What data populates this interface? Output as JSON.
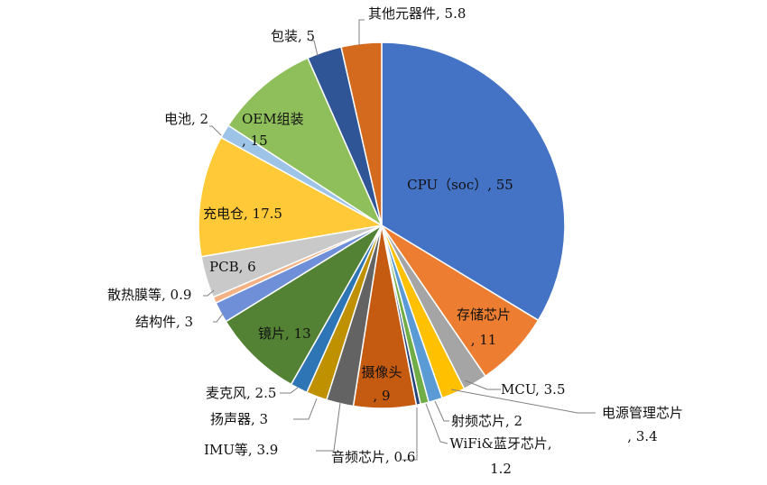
{
  "chart_data": {
    "type": "pie",
    "title": "",
    "slices": [
      {
        "name": "CPU（soc）",
        "value": 55,
        "label": "CPU（soc）, 55",
        "color": "#4472c4"
      },
      {
        "name": "存储芯片",
        "value": 11,
        "label": "存储芯片, 11",
        "color": "#ed7d31"
      },
      {
        "name": "MCU",
        "value": 3.5,
        "label": "MCU, 3.5",
        "color": "#a5a5a5"
      },
      {
        "name": "电源管理芯片",
        "value": 3.4,
        "label": "电源管理芯片, 3.4",
        "color": "#ffc000"
      },
      {
        "name": "射频芯片",
        "value": 2,
        "label": "射频芯片, 2",
        "color": "#5b9bd5"
      },
      {
        "name": "WiFi&蓝牙芯片",
        "value": 1.2,
        "label": "WiFi&蓝牙芯片, 1.2",
        "color": "#70ad47"
      },
      {
        "name": "音频芯片",
        "value": 0.6,
        "label": "音频芯片, 0.6",
        "color": "#264478"
      },
      {
        "name": "摄像头",
        "value": 9,
        "label": "摄像头, 9",
        "color": "#c55a11"
      },
      {
        "name": "IMU等",
        "value": 3.9,
        "label": "IMU等, 3.9",
        "color": "#636363"
      },
      {
        "name": "扬声器",
        "value": 3,
        "label": "扬声器, 3",
        "color": "#bf9000"
      },
      {
        "name": "麦克风",
        "value": 2.5,
        "label": "麦克风, 2.5",
        "color": "#2e75b6"
      },
      {
        "name": "镜片",
        "value": 13,
        "label": "镜片, 13",
        "color": "#548235"
      },
      {
        "name": "结构件",
        "value": 3,
        "label": "结构件, 3",
        "color": "#6f8fd8"
      },
      {
        "name": "散热膜等",
        "value": 0.9,
        "label": "散热膜等, 0.9",
        "color": "#f4b183"
      },
      {
        "name": "PCB",
        "value": 6,
        "label": "PCB, 6",
        "color": "#c9c9c9"
      },
      {
        "name": "充电仓",
        "value": 17.5,
        "label": "充电仓, 17.5",
        "color": "#ffc937"
      },
      {
        "name": "电池",
        "value": 2,
        "label": "电池, 2",
        "color": "#9dc3e6"
      },
      {
        "name": "OEM组装",
        "value": 15,
        "label": "OEM组装, 15",
        "color": "#8fbf5a"
      },
      {
        "name": "包装",
        "value": 5,
        "label": "包装, 5",
        "color": "#2f5597"
      },
      {
        "name": "其他元器件",
        "value": 5.8,
        "label": "其他元器件, 5.8",
        "color": "#d46a1e"
      }
    ]
  }
}
